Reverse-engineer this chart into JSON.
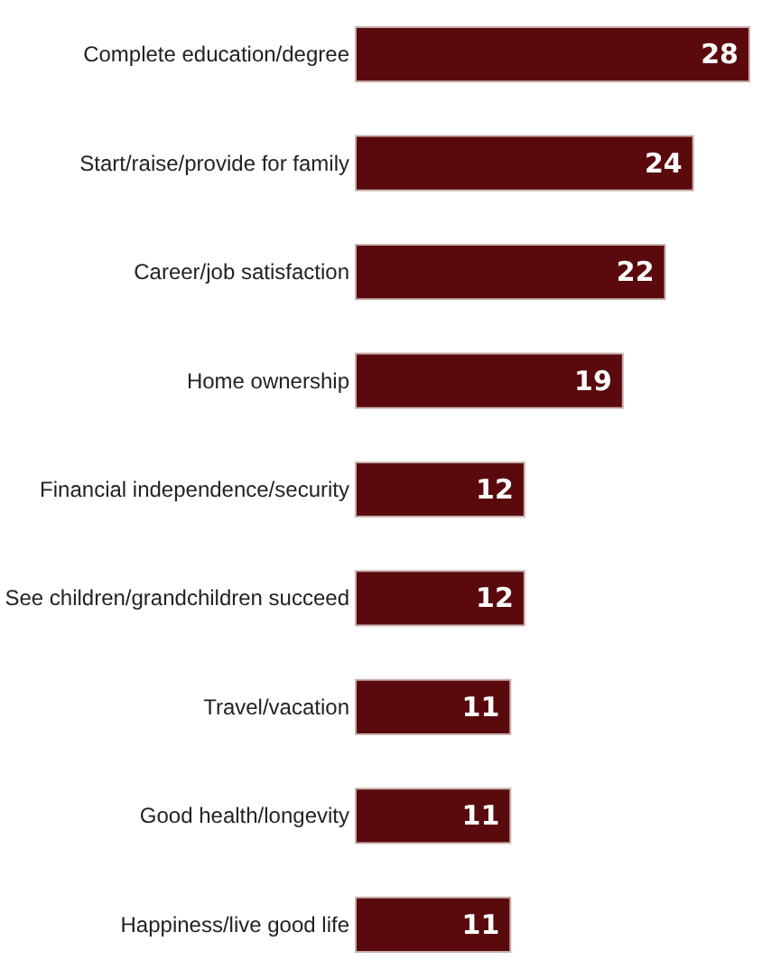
{
  "chart_data": {
    "type": "bar",
    "orientation": "horizontal",
    "categories": [
      "Complete education/degree",
      "Start/raise/provide for family",
      "Career/job satisfaction",
      "Home ownership",
      "Financial independence/security",
      "See children/grandchildren succeed",
      "Travel/vacation",
      "Good health/longevity",
      "Happiness/live good life"
    ],
    "values": [
      28,
      24,
      22,
      19,
      12,
      12,
      11,
      11,
      11
    ],
    "color": "#5a0a0c",
    "data_labels": true
  }
}
